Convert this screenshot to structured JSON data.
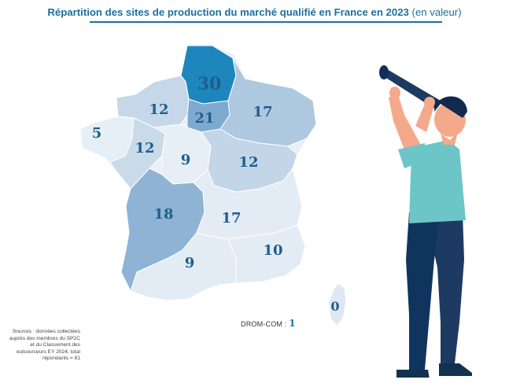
{
  "title": {
    "main": "Répartition des sites de production du marché qualifié en France en 2023",
    "sub": "(en valeur)"
  },
  "regions": [
    {
      "label": "30",
      "value": 30,
      "color": "#1d87bd"
    },
    {
      "label": "21",
      "value": 21,
      "color": "#7fa9cf"
    },
    {
      "label": "18",
      "value": 18,
      "color": "#8fb3d4"
    },
    {
      "label": "17",
      "value": 17,
      "color": "#aec8e0"
    },
    {
      "label": "12",
      "value": 12,
      "color": "#c5d7e8"
    },
    {
      "label": "12",
      "value": 12,
      "color": "#c9dae9"
    },
    {
      "label": "12",
      "value": 12,
      "color": "#c3d6e8"
    },
    {
      "label": "9",
      "value": 9,
      "color": "#e6eef6"
    },
    {
      "label": "5",
      "value": 5,
      "color": "#e6eef6"
    },
    {
      "label": "17",
      "value": 17,
      "color": "#e3ecf5"
    },
    {
      "label": "10",
      "value": 10,
      "color": "#e3ecf5"
    },
    {
      "label": "9",
      "value": 9,
      "color": "#e3ecf5"
    },
    {
      "label": "0",
      "value": 0,
      "color": "#dfe8f2"
    }
  ],
  "drom": {
    "label": "DROM-COM :",
    "value": "1"
  },
  "sources": "Sources : données collectées auprès des membres du SP2C et du Classement des outsourceurs EY 2024, total répondants = 81",
  "colors": {
    "accent": "#1d6f9f",
    "number": "#1f5f8a",
    "figure_shirt": "#6cc6c8",
    "figure_pants": "#1d3a63"
  }
}
